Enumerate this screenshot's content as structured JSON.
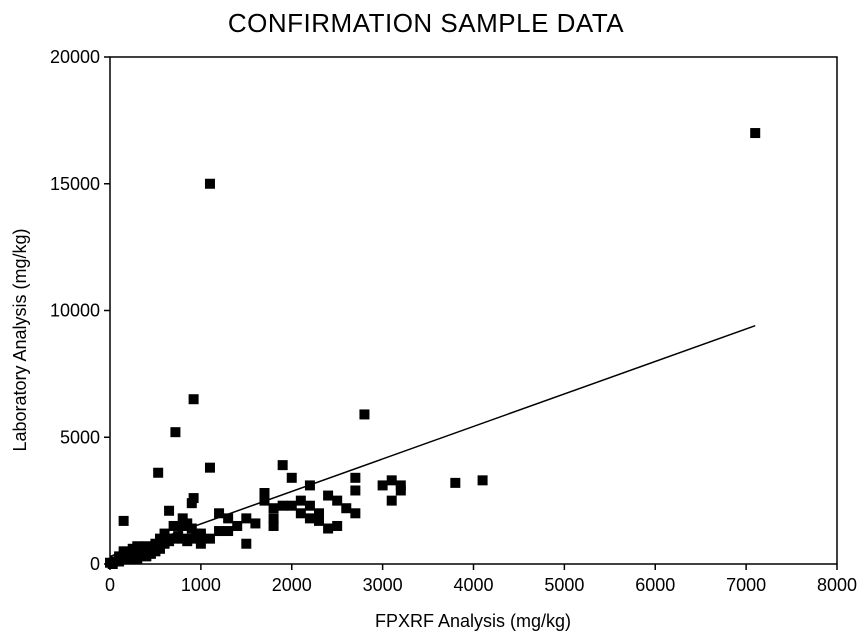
{
  "chart_data": {
    "type": "scatter",
    "title": "CONFIRMATION  SAMPLE DATA",
    "xlabel": "FPXRF Analysis (mg/kg)",
    "ylabel": "Laboratory Analysis (mg/kg)",
    "xlim": [
      0,
      8000
    ],
    "ylim": [
      0,
      20000
    ],
    "x_ticks": [
      0,
      1000,
      2000,
      3000,
      4000,
      5000,
      6000,
      7000,
      8000
    ],
    "y_ticks": [
      0,
      5000,
      10000,
      15000,
      20000
    ],
    "x_tick_labels": [
      "0",
      "1000",
      "2000",
      "3000",
      "4000",
      "5000",
      "6000",
      "7000",
      "8000"
    ],
    "y_tick_labels": [
      "0",
      "5000",
      "10000",
      "15000",
      "20000"
    ],
    "grid": false,
    "marker": "square",
    "color": "#000000",
    "points": [
      [
        7100,
        17000
      ],
      [
        1100,
        15000
      ],
      [
        920,
        6500
      ],
      [
        2800,
        5900
      ],
      [
        720,
        5200
      ],
      [
        1100,
        3800
      ],
      [
        530,
        3600
      ],
      [
        1900,
        3900
      ],
      [
        2000,
        3400
      ],
      [
        2700,
        3400
      ],
      [
        2700,
        2900
      ],
      [
        3000,
        3100
      ],
      [
        3100,
        3300
      ],
      [
        3200,
        3100
      ],
      [
        3200,
        2900
      ],
      [
        3100,
        2500
      ],
      [
        3800,
        3200
      ],
      [
        4100,
        3300
      ],
      [
        2200,
        3100
      ],
      [
        2400,
        2700
      ],
      [
        2500,
        2500
      ],
      [
        2600,
        2200
      ],
      [
        2700,
        2000
      ],
      [
        2300,
        2000
      ],
      [
        2200,
        1800
      ],
      [
        2300,
        1700
      ],
      [
        2400,
        1400
      ],
      [
        2500,
        1500
      ],
      [
        2100,
        2500
      ],
      [
        2200,
        2300
      ],
      [
        2000,
        2300
      ],
      [
        1900,
        2300
      ],
      [
        1800,
        2200
      ],
      [
        1700,
        2800
      ],
      [
        1700,
        2500
      ],
      [
        1800,
        1800
      ],
      [
        1800,
        1500
      ],
      [
        1600,
        1600
      ],
      [
        1500,
        1800
      ],
      [
        1500,
        800
      ],
      [
        1400,
        1500
      ],
      [
        1300,
        1800
      ],
      [
        1300,
        1300
      ],
      [
        1200,
        2000
      ],
      [
        1200,
        1300
      ],
      [
        1000,
        1200
      ],
      [
        1000,
        800
      ],
      [
        900,
        2400
      ],
      [
        920,
        2600
      ],
      [
        800,
        1800
      ],
      [
        800,
        1500
      ],
      [
        850,
        1600
      ],
      [
        900,
        1400
      ],
      [
        950,
        1200
      ],
      [
        900,
        1000
      ],
      [
        850,
        900
      ],
      [
        800,
        1000
      ],
      [
        750,
        1100
      ],
      [
        700,
        1000
      ],
      [
        650,
        2100
      ],
      [
        650,
        900
      ],
      [
        600,
        1200
      ],
      [
        600,
        800
      ],
      [
        550,
        1000
      ],
      [
        550,
        600
      ],
      [
        500,
        800
      ],
      [
        500,
        500
      ],
      [
        450,
        400
      ],
      [
        400,
        700
      ],
      [
        400,
        300
      ],
      [
        350,
        500
      ],
      [
        300,
        700
      ],
      [
        300,
        400
      ],
      [
        300,
        200
      ],
      [
        250,
        600
      ],
      [
        250,
        300
      ],
      [
        200,
        400
      ],
      [
        200,
        200
      ],
      [
        150,
        1700
      ],
      [
        150,
        500
      ],
      [
        150,
        200
      ],
      [
        100,
        300
      ],
      [
        100,
        100
      ],
      [
        50,
        100
      ],
      [
        30,
        0
      ],
      [
        0,
        50
      ],
      [
        1000,
        1100
      ],
      [
        1100,
        1000
      ],
      [
        700,
        1500
      ],
      [
        2100,
        2000
      ]
    ],
    "regression_line": {
      "x": [
        0,
        7100
      ],
      "y": [
        300,
        9400
      ]
    }
  }
}
